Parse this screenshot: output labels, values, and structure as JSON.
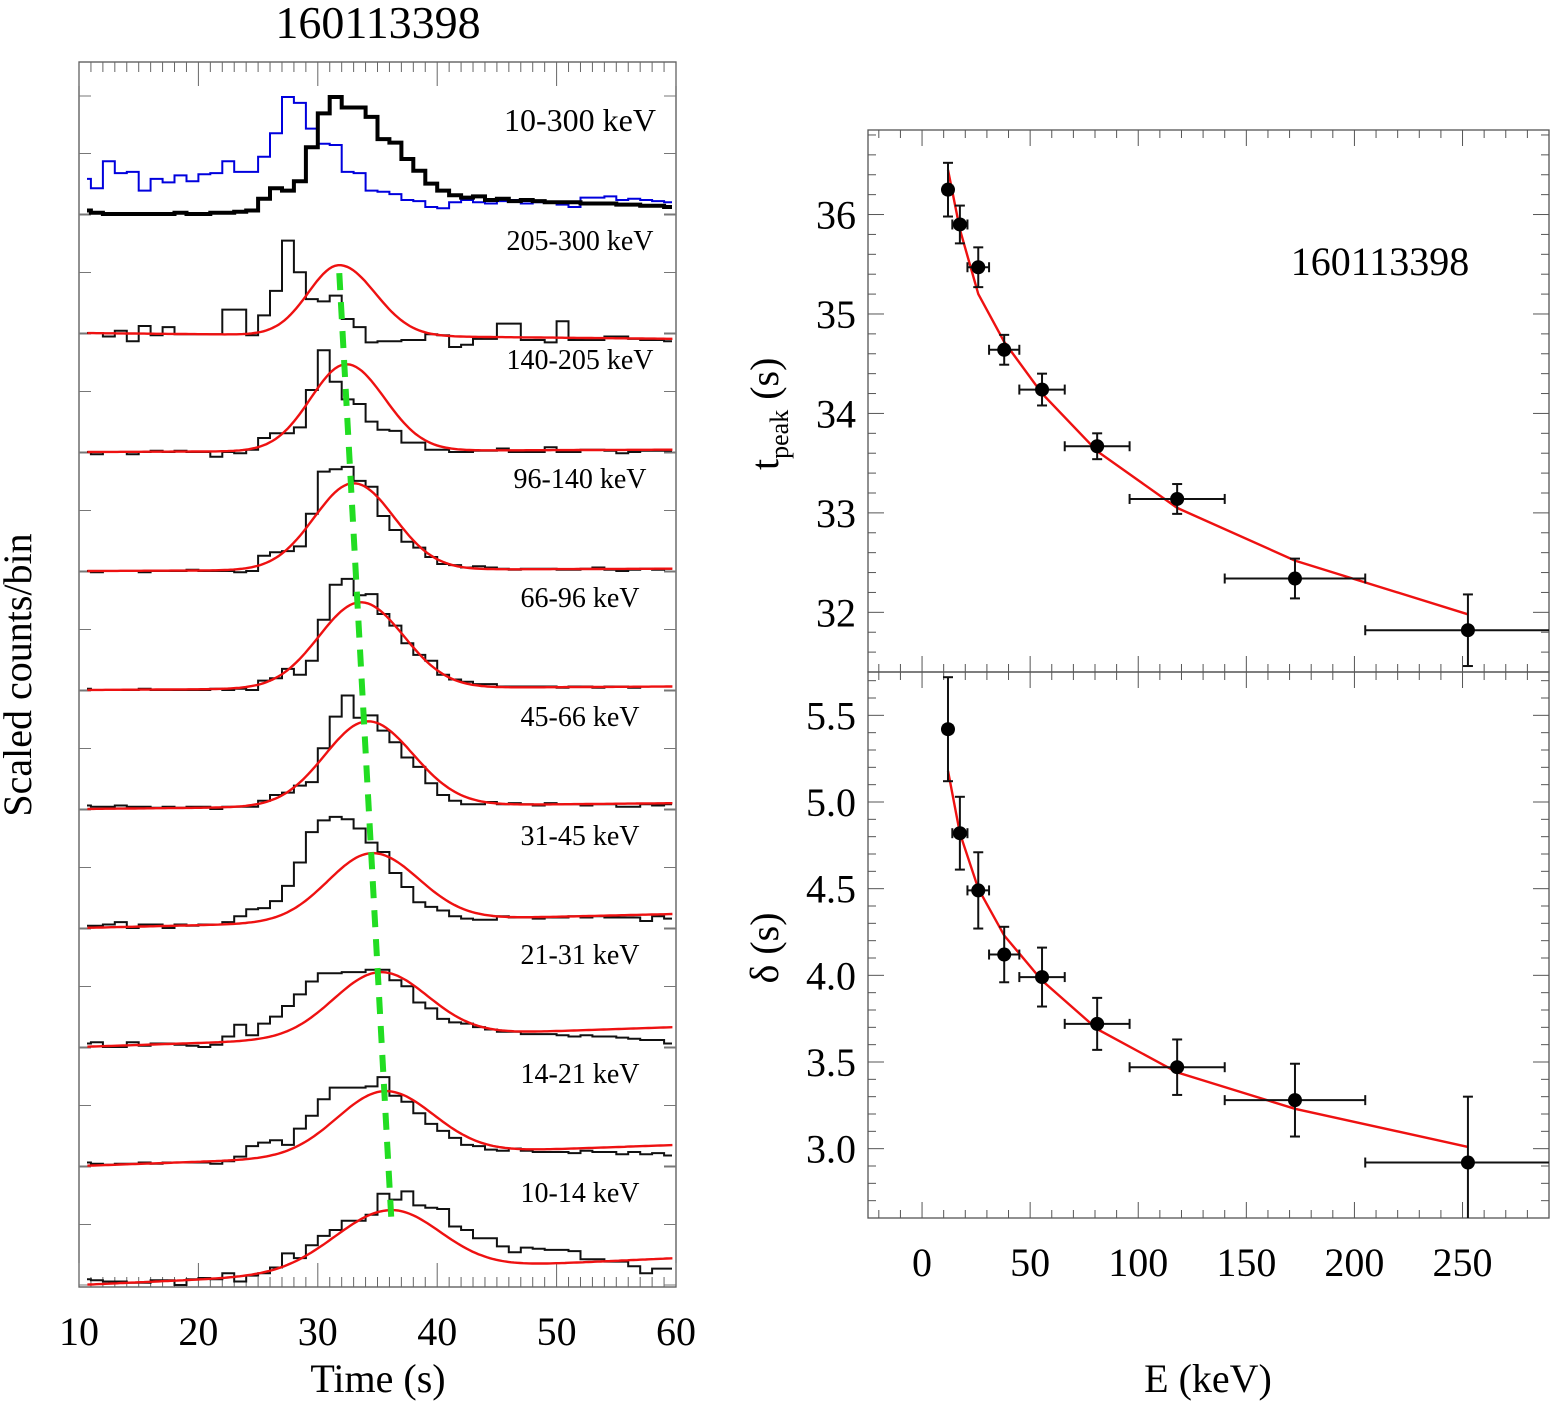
{
  "chart_data": [
    {
      "type": "line",
      "title": "160113398",
      "xlabel": "Time (s)",
      "ylabel": "Scaled counts/bin",
      "xlim": [
        10,
        60
      ],
      "xticks": [
        10,
        20,
        30,
        40,
        50,
        60
      ],
      "x_tick_labels": [
        "10",
        "20",
        "30",
        "40",
        "50",
        "60"
      ],
      "grid": false,
      "bin_width_s": 1.0,
      "bin_start_s": 10.0,
      "peak_trend_line": {
        "color": "#22dd22",
        "style": "dashed",
        "from": {
          "band": "205-300 keV",
          "t": 31.8
        },
        "to": {
          "band": "10-14 keV",
          "t": 36.2
        }
      },
      "panels": [
        {
          "label": "10-300 keV",
          "series": [
            {
              "name": "10-300 keV light curve",
              "color": "#000000",
              "thick": true,
              "values": [
                0.03,
                0.01,
                0.0,
                0.0,
                0.0,
                0.0,
                0.0,
                0.0,
                0.01,
                0.0,
                0.0,
                0.01,
                0.01,
                0.02,
                0.03,
                0.13,
                0.22,
                0.2,
                0.28,
                0.57,
                0.86,
                1.0,
                0.91,
                0.91,
                0.83,
                0.64,
                0.61,
                0.47,
                0.37,
                0.26,
                0.2,
                0.16,
                0.14,
                0.15,
                0.12,
                0.13,
                0.11,
                0.12,
                0.11,
                0.1,
                0.1,
                0.1,
                0.09,
                0.09,
                0.09,
                0.08,
                0.08,
                0.07,
                0.07,
                0.06
              ]
            },
            {
              "name": "comparison light curve",
              "color": "#0000dd",
              "thick": false,
              "values": [
                0.3,
                0.22,
                0.45,
                0.35,
                0.36,
                0.2,
                0.3,
                0.27,
                0.33,
                0.28,
                0.34,
                0.35,
                0.45,
                0.36,
                0.36,
                0.49,
                0.69,
                1.0,
                0.95,
                0.73,
                0.6,
                0.59,
                0.36,
                0.35,
                0.2,
                0.19,
                0.17,
                0.12,
                0.11,
                0.06,
                0.05,
                0.1,
                0.12,
                0.1,
                0.09,
                0.11,
                0.12,
                0.09,
                0.1,
                0.1,
                0.08,
                0.06,
                0.14,
                0.14,
                0.15,
                0.12,
                0.13,
                0.12,
                0.11,
                0.1
              ]
            }
          ]
        },
        {
          "label": "205-300 keV",
          "fit": {
            "t_peak": 31.8,
            "sigma_rise": 2.6,
            "sigma_decay": 3.0,
            "base_start": 0.0,
            "base_end": -0.05
          },
          "values": [
            0.0,
            0.0,
            -0.03,
            0.02,
            -0.07,
            0.06,
            -0.02,
            0.05,
            -0.01,
            -0.01,
            -0.01,
            -0.01,
            0.2,
            0.2,
            -0.02,
            0.15,
            0.36,
            0.79,
            0.52,
            0.29,
            0.27,
            0.32,
            0.12,
            0.05,
            -0.08,
            -0.07,
            -0.07,
            -0.06,
            -0.06,
            -0.01,
            -0.02,
            -0.12,
            -0.1,
            -0.05,
            -0.05,
            0.08,
            0.08,
            -0.06,
            -0.06,
            -0.08,
            0.1,
            -0.06,
            -0.06,
            -0.06,
            -0.03,
            -0.03,
            -0.05,
            -0.06,
            -0.06,
            -0.07
          ]
        },
        {
          "label": "140-205 keV",
          "fit": {
            "t_peak": 32.4,
            "sigma_rise": 3.0,
            "sigma_decay": 3.2,
            "base_start": 0.0,
            "base_end": 0.02
          },
          "values": [
            0.0,
            -0.02,
            0.0,
            0.0,
            -0.02,
            0.0,
            0.01,
            0.0,
            0.01,
            0.0,
            0.0,
            -0.04,
            0.0,
            -0.01,
            0.02,
            0.12,
            0.16,
            0.16,
            0.21,
            0.53,
            0.87,
            0.6,
            0.45,
            0.41,
            0.26,
            0.19,
            0.18,
            0.08,
            0.08,
            0.02,
            0.02,
            0.0,
            0.0,
            0.01,
            0.01,
            0.03,
            0.0,
            0.0,
            0.0,
            0.04,
            0.0,
            0.0,
            0.02,
            0.02,
            0.01,
            -0.01,
            0.0,
            0.01,
            0.01,
            0.01
          ]
        },
        {
          "label": "96-140 keV",
          "fit": {
            "t_peak": 33.0,
            "sigma_rise": 3.3,
            "sigma_decay": 3.4,
            "base_start": 0.0,
            "base_end": 0.02
          },
          "values": [
            0.0,
            -0.01,
            0.0,
            0.0,
            0.0,
            -0.01,
            0.0,
            0.0,
            0.0,
            0.01,
            0.0,
            0.0,
            0.0,
            -0.01,
            0.0,
            0.13,
            0.16,
            0.17,
            0.21,
            0.49,
            0.85,
            0.87,
            0.89,
            0.77,
            0.72,
            0.47,
            0.35,
            0.25,
            0.2,
            0.12,
            0.06,
            0.05,
            0.03,
            0.04,
            0.03,
            0.02,
            0.01,
            0.02,
            0.02,
            0.02,
            0.01,
            0.01,
            0.02,
            0.03,
            0.01,
            0.0,
            0.01,
            0.02,
            0.01,
            0.02
          ]
        },
        {
          "label": "66-96 keV",
          "fit": {
            "t_peak": 33.6,
            "sigma_rise": 3.5,
            "sigma_decay": 3.6,
            "base_start": 0.0,
            "base_end": 0.03
          },
          "values": [
            0.01,
            0.0,
            0.0,
            0.0,
            0.0,
            0.01,
            0.0,
            0.0,
            0.0,
            0.0,
            0.0,
            0.01,
            0.0,
            0.01,
            0.0,
            0.08,
            0.1,
            0.18,
            0.13,
            0.25,
            0.6,
            0.9,
            0.95,
            0.81,
            0.82,
            0.65,
            0.55,
            0.4,
            0.3,
            0.25,
            0.13,
            0.09,
            0.07,
            0.05,
            0.05,
            0.03,
            0.03,
            0.03,
            0.03,
            0.03,
            0.02,
            0.03,
            0.03,
            0.02,
            0.03,
            0.03,
            0.02,
            0.03,
            0.03,
            0.03
          ]
        },
        {
          "label": "45-66 keV",
          "fit": {
            "t_peak": 34.2,
            "sigma_rise": 3.6,
            "sigma_decay": 3.8,
            "base_start": 0.0,
            "base_end": 0.05
          },
          "values": [
            0.03,
            0.02,
            0.02,
            0.03,
            0.02,
            0.02,
            0.01,
            0.02,
            0.01,
            0.02,
            0.02,
            0.0,
            0.02,
            0.02,
            0.02,
            0.07,
            0.12,
            0.14,
            0.2,
            0.23,
            0.52,
            0.79,
            0.97,
            0.78,
            0.8,
            0.67,
            0.57,
            0.44,
            0.36,
            0.22,
            0.12,
            0.07,
            0.04,
            0.04,
            0.06,
            0.04,
            0.05,
            0.04,
            0.03,
            0.05,
            0.04,
            0.04,
            0.03,
            0.04,
            0.04,
            0.02,
            0.02,
            0.04,
            0.03,
            0.04
          ]
        },
        {
          "label": "31-45 keV",
          "fit": {
            "t_peak": 34.6,
            "sigma_rise": 3.7,
            "sigma_decay": 3.9,
            "base_start": 0.0,
            "base_end": 0.12
          },
          "values": [
            0.02,
            0.02,
            0.03,
            0.05,
            0.0,
            0.03,
            0.03,
            0.0,
            0.03,
            0.02,
            0.03,
            0.03,
            0.05,
            0.1,
            0.16,
            0.17,
            0.23,
            0.36,
            0.56,
            0.82,
            0.92,
            0.95,
            0.93,
            0.85,
            0.73,
            0.65,
            0.47,
            0.35,
            0.22,
            0.18,
            0.15,
            0.1,
            0.08,
            0.07,
            0.07,
            0.1,
            0.09,
            0.09,
            0.08,
            0.09,
            0.09,
            0.1,
            0.09,
            0.1,
            0.09,
            0.09,
            0.09,
            0.06,
            0.1,
            0.08
          ]
        },
        {
          "label": "21-31 keV",
          "fit": {
            "t_peak": 35.3,
            "sigma_rise": 3.9,
            "sigma_decay": 4.0,
            "base_start": 0.0,
            "base_end": 0.17
          },
          "values": [
            0.03,
            0.04,
            0.0,
            0.0,
            0.04,
            0.01,
            0.03,
            0.03,
            0.02,
            0.01,
            0.0,
            0.02,
            0.09,
            0.19,
            0.1,
            0.2,
            0.26,
            0.35,
            0.45,
            0.56,
            0.63,
            0.63,
            0.64,
            0.64,
            0.66,
            0.66,
            0.57,
            0.52,
            0.38,
            0.33,
            0.24,
            0.21,
            0.2,
            0.17,
            0.15,
            0.13,
            0.13,
            0.11,
            0.11,
            0.11,
            0.1,
            0.09,
            0.1,
            0.09,
            0.09,
            0.08,
            0.07,
            0.06,
            0.06,
            0.03
          ]
        },
        {
          "label": "14-21 keV",
          "fit": {
            "t_peak": 35.7,
            "sigma_rise": 4.0,
            "sigma_decay": 4.1,
            "base_start": 0.0,
            "base_end": 0.18
          },
          "values": [
            0.03,
            0.02,
            0.01,
            0.02,
            0.02,
            0.03,
            0.02,
            0.03,
            0.03,
            0.03,
            0.03,
            0.02,
            0.04,
            0.08,
            0.17,
            0.2,
            0.22,
            0.18,
            0.32,
            0.43,
            0.57,
            0.67,
            0.67,
            0.67,
            0.68,
            0.76,
            0.6,
            0.55,
            0.45,
            0.36,
            0.3,
            0.24,
            0.18,
            0.17,
            0.14,
            0.13,
            0.15,
            0.13,
            0.12,
            0.12,
            0.12,
            0.11,
            0.13,
            0.12,
            0.12,
            0.1,
            0.12,
            0.1,
            0.11,
            0.09
          ]
        },
        {
          "label": "10-14 keV",
          "fit": {
            "t_peak": 36.2,
            "sigma_rise": 4.6,
            "sigma_decay": 4.2,
            "base_start": 0.0,
            "base_end": 0.23
          },
          "values": [
            0.05,
            0.04,
            0.03,
            0.03,
            0.02,
            0.02,
            0.04,
            0.04,
            0.0,
            0.05,
            0.06,
            0.05,
            0.1,
            0.03,
            0.08,
            0.1,
            0.15,
            0.27,
            0.23,
            0.34,
            0.42,
            0.47,
            0.55,
            0.55,
            0.6,
            0.78,
            0.73,
            0.8,
            0.68,
            0.66,
            0.65,
            0.5,
            0.47,
            0.4,
            0.4,
            0.33,
            0.28,
            0.32,
            0.31,
            0.3,
            0.3,
            0.29,
            0.22,
            0.22,
            0.2,
            0.2,
            0.16,
            0.1,
            0.14,
            0.14
          ]
        }
      ]
    },
    {
      "type": "scatter",
      "title": "160113398",
      "xlabel": "E (keV)",
      "ylabel": "t_peak (s)",
      "ylabel_main": "t",
      "ylabel_sub": "peak",
      "ylabel_unit": " (s)",
      "annotation": "160113398",
      "xlim": [
        -25,
        290
      ],
      "ylim": [
        31.4,
        36.85
      ],
      "xticks": [
        0,
        50,
        100,
        150,
        200,
        250
      ],
      "yticks": [
        32,
        33,
        34,
        35,
        36
      ],
      "y_tick_labels": [
        "32",
        "33",
        "34",
        "35",
        "36"
      ],
      "grid": false,
      "points": [
        {
          "E": 12.0,
          "E_lo": 10,
          "E_hi": 14,
          "y": 36.25,
          "y_err": 0.27
        },
        {
          "E": 17.5,
          "E_lo": 14,
          "E_hi": 21,
          "y": 35.9,
          "y_err": 0.19
        },
        {
          "E": 26.0,
          "E_lo": 21,
          "E_hi": 31,
          "y": 35.47,
          "y_err": 0.2
        },
        {
          "E": 38.0,
          "E_lo": 31,
          "E_hi": 45,
          "y": 34.64,
          "y_err": 0.15
        },
        {
          "E": 55.5,
          "E_lo": 45,
          "E_hi": 66,
          "y": 34.24,
          "y_err": 0.16
        },
        {
          "E": 81.0,
          "E_lo": 66,
          "E_hi": 96,
          "y": 33.67,
          "y_err": 0.13
        },
        {
          "E": 118.0,
          "E_lo": 96,
          "E_hi": 140,
          "y": 33.14,
          "y_err": 0.15
        },
        {
          "E": 172.5,
          "E_lo": 140,
          "E_hi": 205,
          "y": 32.34,
          "y_err": 0.2
        },
        {
          "E": 252.5,
          "E_lo": 205,
          "E_hi": 300,
          "y": 31.82,
          "y_err": 0.36
        }
      ],
      "fit_curve": {
        "E": [
          12,
          17.5,
          26,
          38,
          55.5,
          81,
          118,
          172.5,
          252.5
        ],
        "y": [
          36.45,
          35.85,
          35.2,
          34.72,
          34.2,
          33.62,
          33.05,
          32.52,
          31.98
        ],
        "color": "#ee1111"
      }
    },
    {
      "type": "scatter",
      "xlabel": "E (keV)",
      "ylabel": "δ (s)",
      "xlim": [
        -25,
        290
      ],
      "ylim": [
        2.6,
        5.75
      ],
      "xticks": [
        0,
        50,
        100,
        150,
        200,
        250
      ],
      "x_tick_labels": [
        "0",
        "50",
        "100",
        "150",
        "200",
        "250"
      ],
      "yticks": [
        3.0,
        3.5,
        4.0,
        4.5,
        5.0,
        5.5
      ],
      "y_tick_labels": [
        "3.0",
        "3.5",
        "4.0",
        "4.5",
        "5.0",
        "5.5"
      ],
      "grid": false,
      "points": [
        {
          "E": 12.0,
          "E_lo": 10,
          "E_hi": 14,
          "y": 5.42,
          "y_err": 0.3
        },
        {
          "E": 17.5,
          "E_lo": 14,
          "E_hi": 21,
          "y": 4.82,
          "y_err": 0.21
        },
        {
          "E": 26.0,
          "E_lo": 21,
          "E_hi": 31,
          "y": 4.49,
          "y_err": 0.22
        },
        {
          "E": 38.0,
          "E_lo": 31,
          "E_hi": 45,
          "y": 4.12,
          "y_err": 0.16
        },
        {
          "E": 55.5,
          "E_lo": 45,
          "E_hi": 66,
          "y": 3.99,
          "y_err": 0.17
        },
        {
          "E": 81.0,
          "E_lo": 66,
          "E_hi": 96,
          "y": 3.72,
          "y_err": 0.15
        },
        {
          "E": 118.0,
          "E_lo": 96,
          "E_hi": 140,
          "y": 3.47,
          "y_err": 0.16
        },
        {
          "E": 172.5,
          "E_lo": 140,
          "E_hi": 205,
          "y": 3.28,
          "y_err": 0.21
        },
        {
          "E": 252.5,
          "E_lo": 205,
          "E_hi": 300,
          "y": 2.92,
          "y_err": 0.38
        }
      ],
      "fit_curve": {
        "E": [
          12,
          17.5,
          26,
          38,
          55.5,
          81,
          118,
          172.5,
          252.5
        ],
        "y": [
          5.18,
          4.82,
          4.5,
          4.23,
          3.97,
          3.69,
          3.44,
          3.23,
          3.01
        ],
        "color": "#ee1111"
      }
    }
  ]
}
